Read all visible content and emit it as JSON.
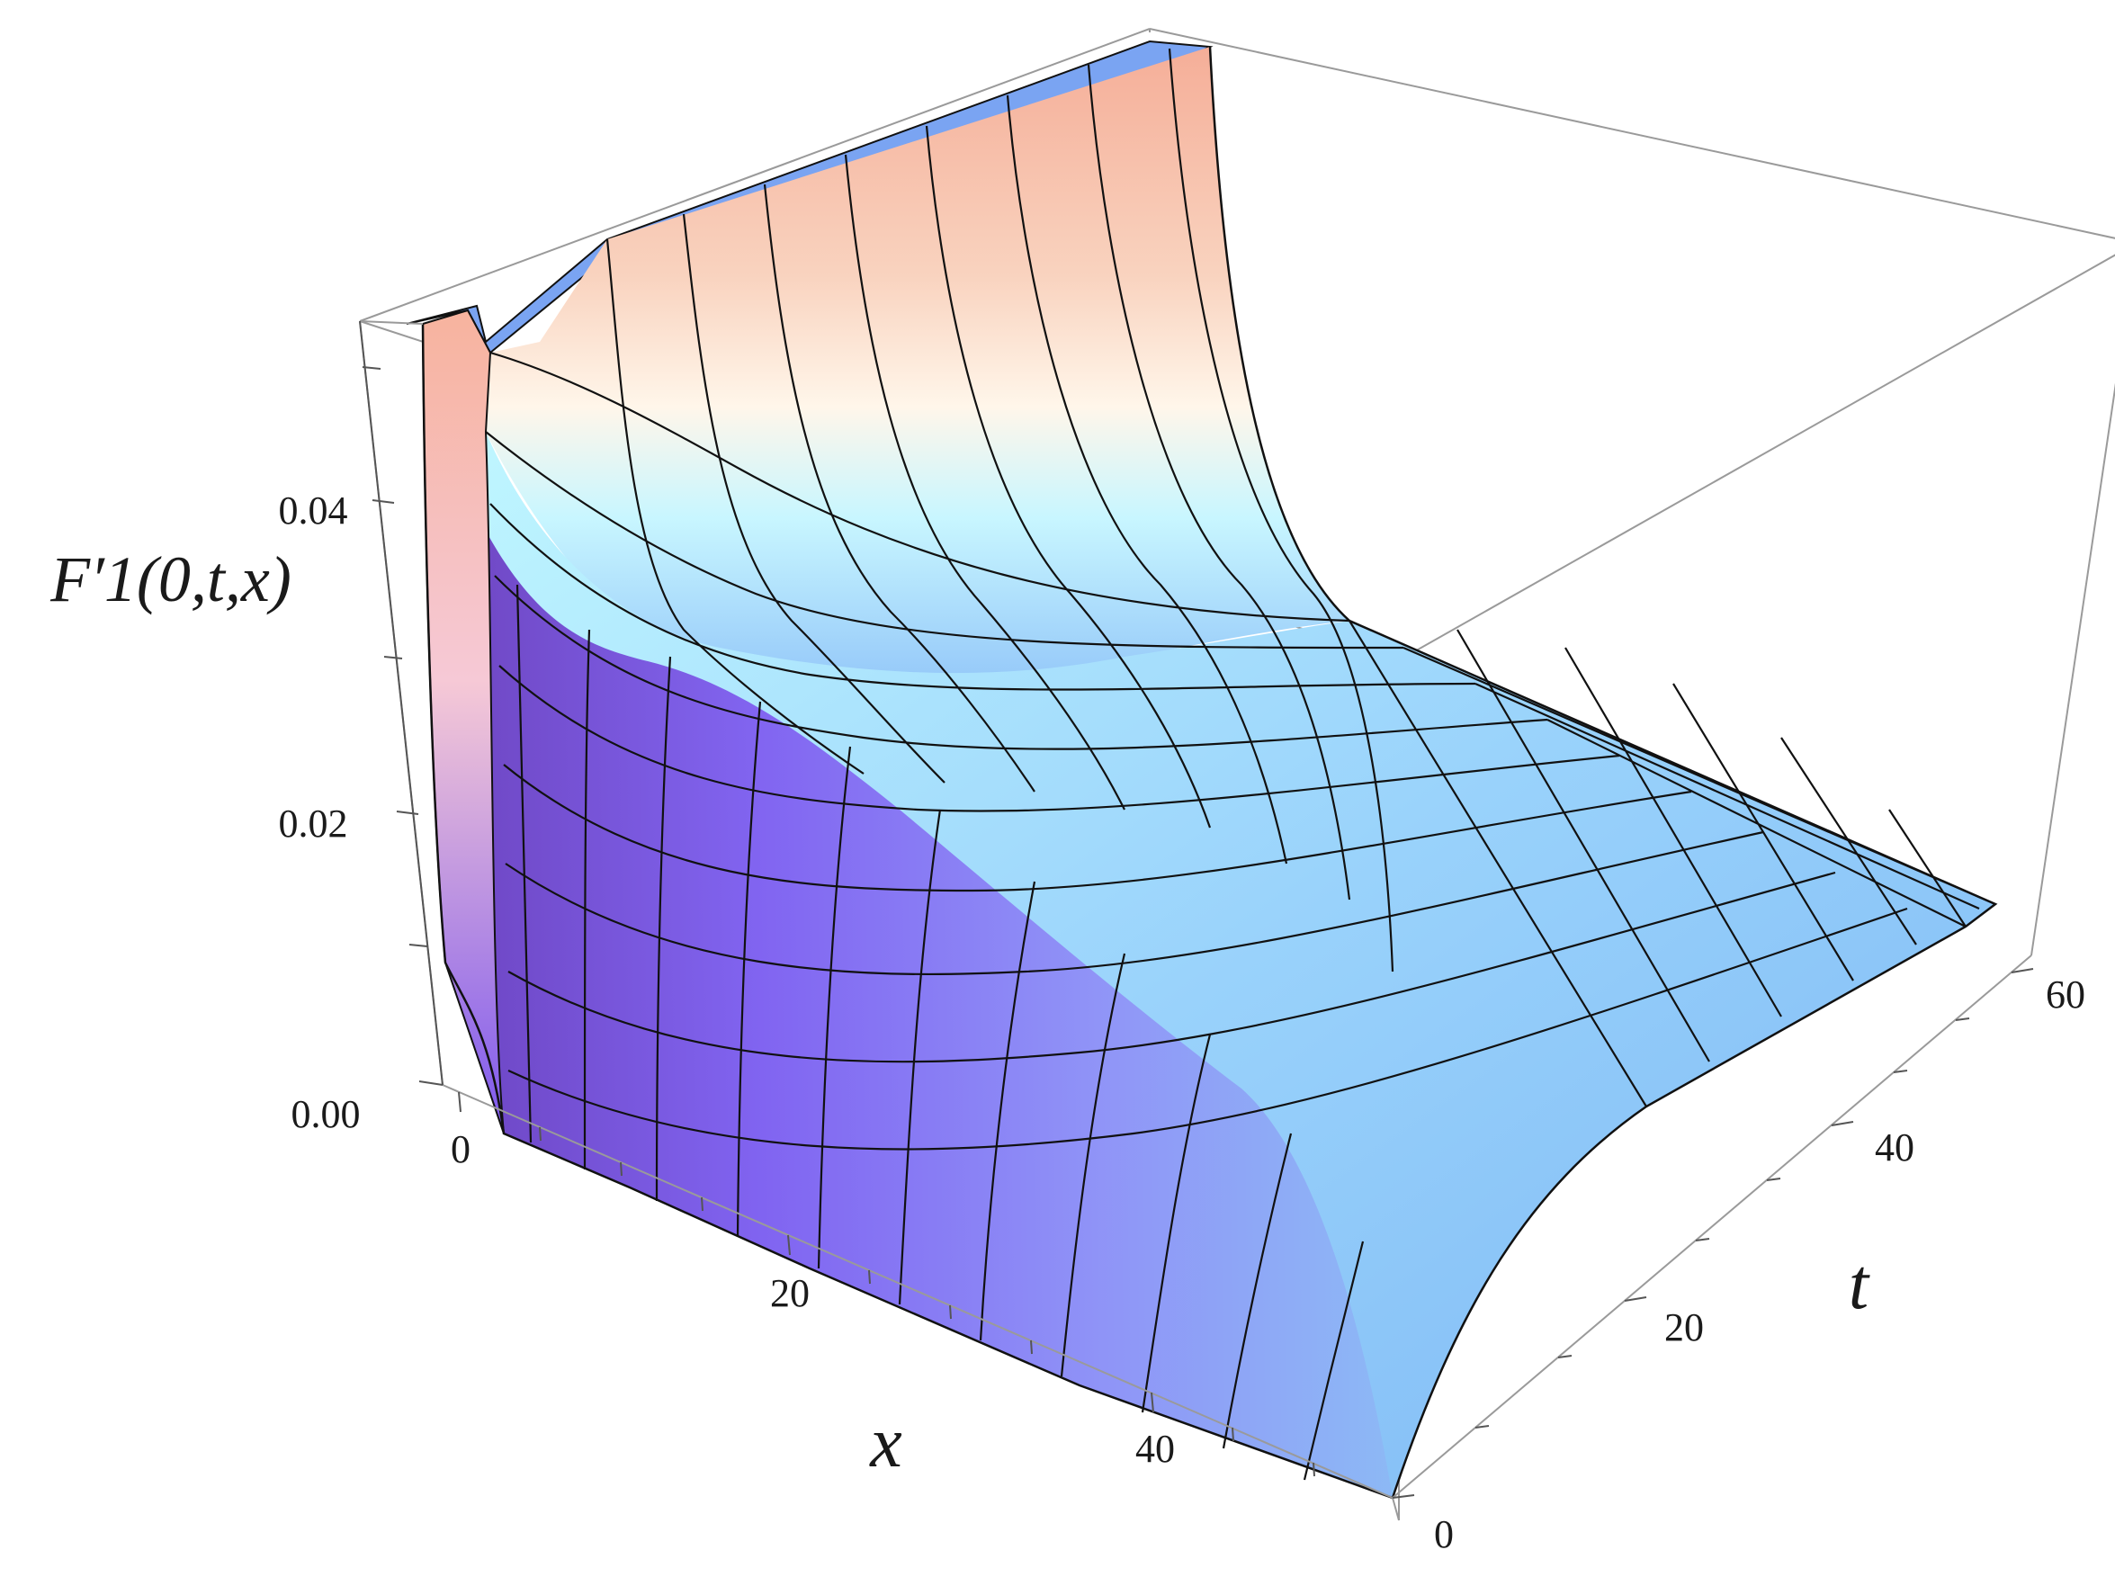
{
  "chart_data": {
    "type": "surface3d",
    "zlabel": "F′1(0,t,x)",
    "xlabel": "x",
    "ylabel": "t",
    "x_ticks": [
      "0",
      "20",
      "40"
    ],
    "t_ticks": [
      "0",
      "20",
      "40",
      "60"
    ],
    "z_ticks": [
      "0.00",
      "0.02",
      "0.04"
    ],
    "xlim": [
      0,
      50
    ],
    "tlim": [
      0,
      62
    ],
    "zlim": [
      0,
      0.05
    ],
    "box": true,
    "mesh_x": [
      0,
      0.5,
      1,
      2,
      3,
      5,
      8,
      12,
      16,
      20,
      24,
      28,
      32,
      36,
      40,
      44,
      48,
      50
    ],
    "mesh_t": [
      0,
      5,
      10,
      15,
      20,
      25,
      30,
      35,
      40,
      45,
      50,
      55,
      60,
      62
    ],
    "surface_samples": [
      {
        "x": 0,
        "t": 0,
        "z": 0.05
      },
      {
        "x": 1,
        "t": 0,
        "z": 0.007
      },
      {
        "x": 20,
        "t": 0,
        "z": 0.0
      },
      {
        "x": 0,
        "t": 62,
        "z": 0.05
      },
      {
        "x": 50,
        "t": 62,
        "z": 0.012
      },
      {
        "x": 20,
        "t": 30,
        "z": 0.016
      },
      {
        "x": 50,
        "t": 0,
        "z": 0.0
      }
    ],
    "colors": {
      "top_peach": "#f7b7a2",
      "mid_white": "#ffffff",
      "light_cyan": "#a6f4ff",
      "sky_blue": "#82bdf7",
      "purple": "#7e5af0",
      "deep_purple": "#6634b8",
      "cap_blue": "#7aa4f2",
      "mesh": "#111111",
      "box": "#9a9a9a"
    }
  }
}
